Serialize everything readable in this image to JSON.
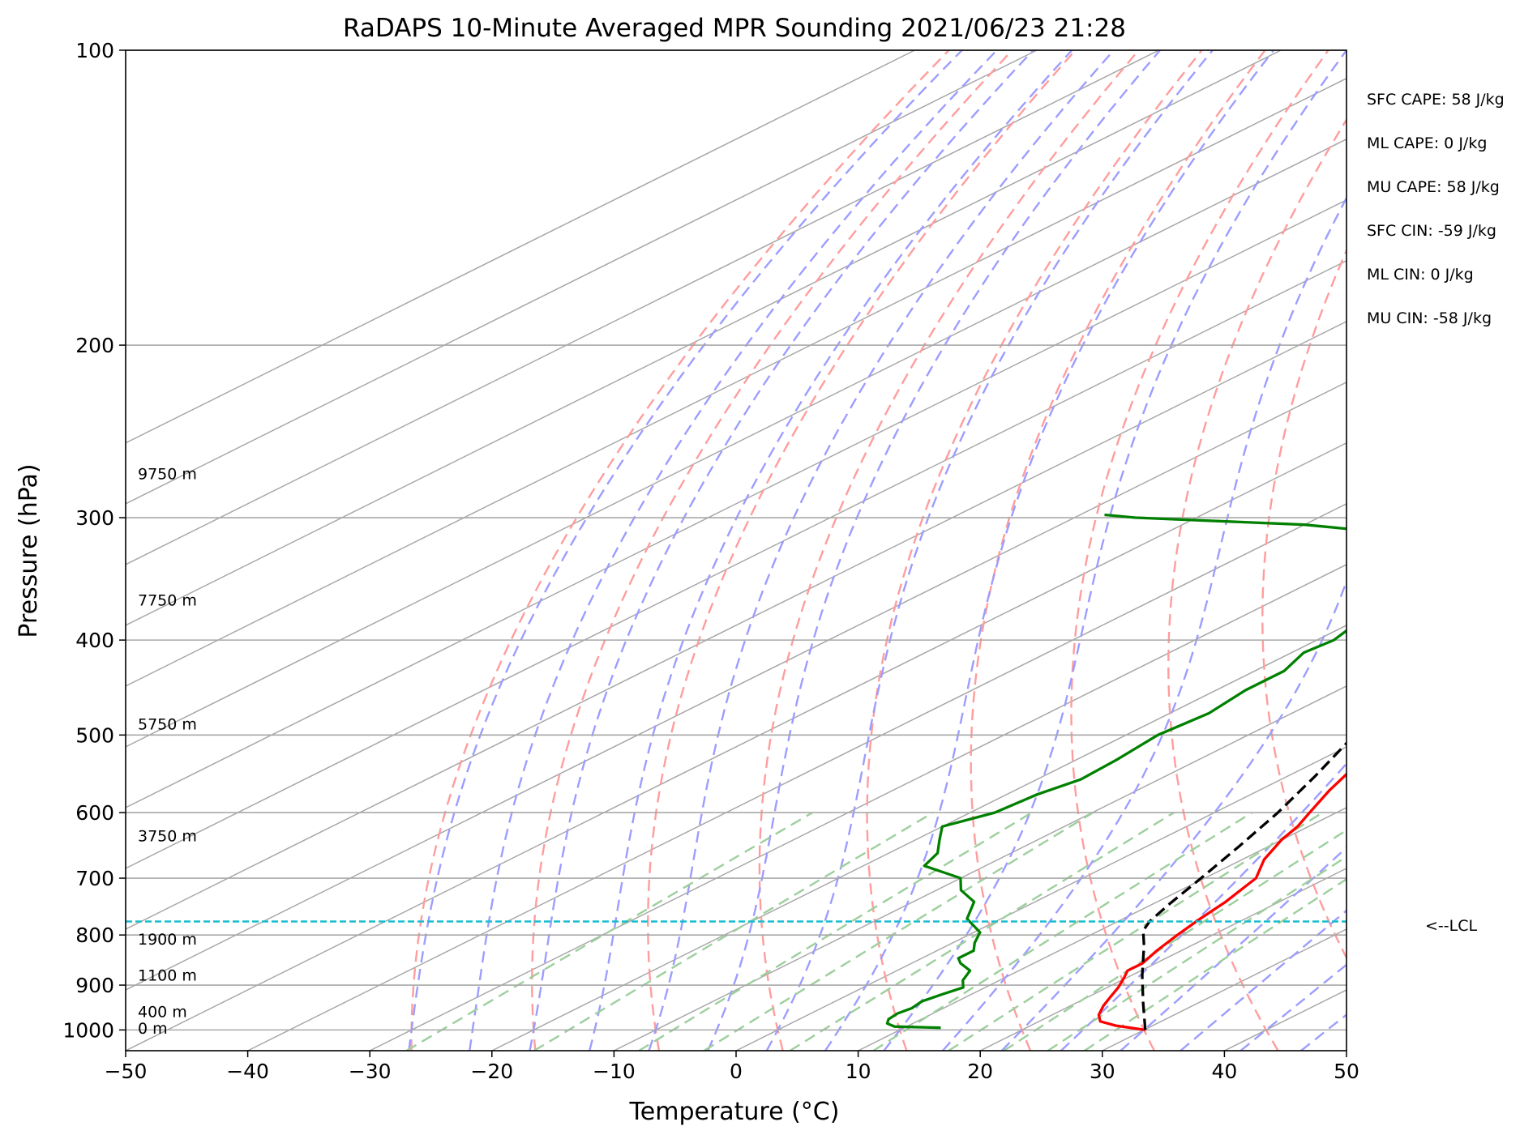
{
  "chart_data": {
    "type": "line",
    "title": "RaDAPS 10-Minute Averaged MPR Sounding 2021/06/23 21:28",
    "xlabel": "Temperature (°C)",
    "ylabel": "Pressure (hPa)",
    "xlim": [
      -50,
      50
    ],
    "ylim": [
      1050,
      100
    ],
    "y_scale": "log",
    "skew": "skew-T log-p",
    "grid": true,
    "x_ticks": [
      "−50",
      "−40",
      "−30",
      "−20",
      "−10",
      "0",
      "10",
      "20",
      "30",
      "40",
      "50"
    ],
    "y_ticks": [
      "100",
      "200",
      "300",
      "400",
      "500",
      "600",
      "700",
      "800",
      "900",
      "1000"
    ],
    "series": [
      {
        "name": "Temperature",
        "color": "#ff0000",
        "style": "solid",
        "points": [
          [
            1000,
            30.1
          ],
          [
            990,
            27.0
          ],
          [
            980,
            25.0
          ],
          [
            965,
            23.8
          ],
          [
            945,
            22.7
          ],
          [
            925,
            21.8
          ],
          [
            905,
            20.9
          ],
          [
            885,
            19.8
          ],
          [
            870,
            18.9
          ],
          [
            855,
            18.9
          ],
          [
            830,
            18.0
          ],
          [
            800,
            17.1
          ],
          [
            770,
            16.3
          ],
          [
            740,
            15.6
          ],
          [
            700,
            14.2
          ],
          [
            670,
            11.8
          ],
          [
            640,
            10.0
          ],
          [
            620,
            9.1
          ],
          [
            600,
            7.8
          ],
          [
            570,
            5.8
          ],
          [
            540,
            4.0
          ],
          [
            510,
            1.1
          ],
          [
            480,
            -2.2
          ],
          [
            450,
            -5.8
          ],
          [
            420,
            -9.2
          ],
          [
            400,
            -11.6
          ],
          [
            380,
            -14.0
          ],
          [
            360,
            -16.4
          ],
          [
            340,
            -19.0
          ],
          [
            320,
            -22.1
          ],
          [
            300,
            -25.3
          ],
          [
            285,
            -28.3
          ],
          [
            272,
            -31.2
          ]
        ]
      },
      {
        "name": "Dewpoint",
        "color": "#008000",
        "style": "solid",
        "points": [
          [
            995,
            13.0
          ],
          [
            992,
            9.0
          ],
          [
            985,
            7.9
          ],
          [
            975,
            7.3
          ],
          [
            962,
            7.1
          ],
          [
            950,
            7.4
          ],
          [
            935,
            7.1
          ],
          [
            920,
            7.6
          ],
          [
            905,
            8.2
          ],
          [
            890,
            7.0
          ],
          [
            870,
            6.0
          ],
          [
            855,
            4.0
          ],
          [
            845,
            3.0
          ],
          [
            830,
            3.0
          ],
          [
            815,
            1.8
          ],
          [
            795,
            0.5
          ],
          [
            770,
            -2.8
          ],
          [
            740,
            -5.0
          ],
          [
            720,
            -8.0
          ],
          [
            700,
            -10.0
          ],
          [
            680,
            -15.0
          ],
          [
            660,
            -16.0
          ],
          [
            640,
            -18.0
          ],
          [
            620,
            -20.0
          ],
          [
            600,
            -18.0
          ],
          [
            575,
            -17.5
          ],
          [
            555,
            -16.4
          ],
          [
            530,
            -16.7
          ],
          [
            500,
            -17.4
          ],
          [
            475,
            -16.8
          ],
          [
            450,
            -17.6
          ],
          [
            430,
            -17.6
          ],
          [
            412,
            -19.0
          ],
          [
            400,
            -18.6
          ],
          [
            380,
            -19.8
          ],
          [
            370,
            -20.3
          ],
          [
            355,
            -22.0
          ],
          [
            335,
            -25.8
          ],
          [
            320,
            -30.0
          ],
          [
            310,
            -33.0
          ],
          [
            305,
            -40.0
          ],
          [
            300,
            -55.0
          ],
          [
            298,
            -58.0
          ]
        ]
      },
      {
        "name": "Parcel profile",
        "color": "#000000",
        "style": "dashed",
        "points": [
          [
            1000,
            30.1
          ],
          [
            940,
            25.6
          ],
          [
            880,
            20.9
          ],
          [
            820,
            16.1
          ],
          [
            792,
            13.6
          ],
          [
            775,
            12.6
          ],
          [
            745,
            11.4
          ],
          [
            700,
            9.7
          ],
          [
            650,
            7.6
          ],
          [
            600,
            5.2
          ],
          [
            550,
            2.2
          ],
          [
            500,
            -1.3
          ],
          [
            450,
            -5.4
          ],
          [
            400,
            -10.6
          ],
          [
            350,
            -17.1
          ],
          [
            320,
            -21.9
          ],
          [
            300,
            -25.7
          ],
          [
            285,
            -28.8
          ],
          [
            272,
            -32.0
          ]
        ]
      }
    ],
    "lcl_pressure_hpa": 775,
    "lcl_label": "<--LCL",
    "height_labels": [
      {
        "text": "9750 m",
        "p": 272
      },
      {
        "text": "7750 m",
        "p": 366
      },
      {
        "text": "5750 m",
        "p": 490
      },
      {
        "text": "3750 m",
        "p": 637
      },
      {
        "text": "1900 m",
        "p": 812
      },
      {
        "text": "1100 m",
        "p": 884
      },
      {
        "text": "400 m",
        "p": 963
      },
      {
        "text": "0 m",
        "p": 1001
      }
    ],
    "parameters": [
      "SFC CAPE: 58 J/kg",
      "ML CAPE: 0 J/kg",
      "MU CAPE: 58 J/kg",
      "SFC CIN: -59 J/kg",
      "ML CIN: 0 J/kg",
      "MU CIN: -58 J/kg"
    ],
    "colors": {
      "dry_adiabats": "#ff9d9d",
      "moist_adiabats": "#9d9dff",
      "mixing_ratio": "#9dcf9d",
      "isotherms": "#a8a8a8",
      "lcl_line": "#17becf"
    }
  }
}
